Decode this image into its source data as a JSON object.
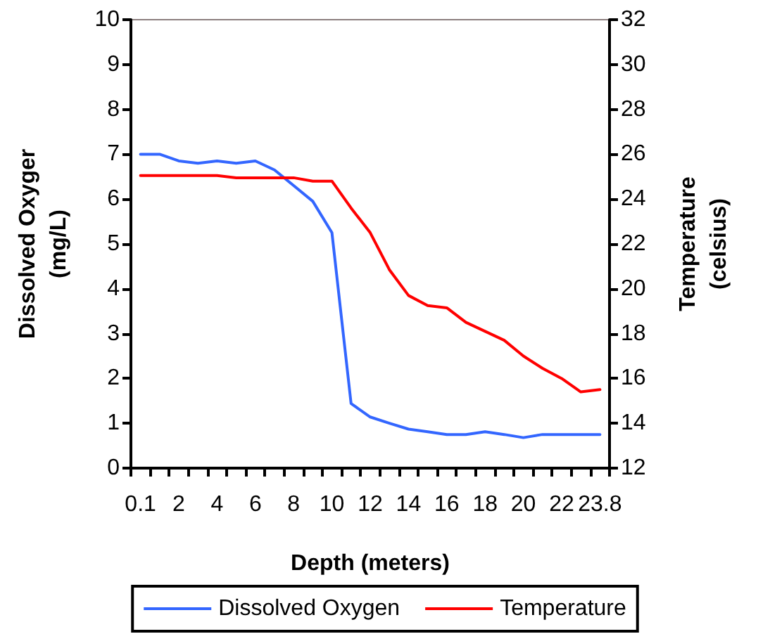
{
  "chart_data": {
    "type": "line",
    "categories": [
      "0.1",
      null,
      "2",
      null,
      "4",
      null,
      "6",
      null,
      "8",
      null,
      "10",
      null,
      "12",
      null,
      "14",
      null,
      "16",
      null,
      "18",
      null,
      "20",
      null,
      "22",
      null,
      "23.8"
    ],
    "xlabel": "Depth (meters)",
    "ylabel": "Dissolved Oxyger\n(mg/L)",
    "y2label": "Temperature\n(celsius)",
    "ylim": [
      0,
      10
    ],
    "yticks": [
      0,
      1,
      2,
      3,
      4,
      5,
      6,
      7,
      8,
      9,
      10
    ],
    "y2lim": [
      12,
      32
    ],
    "y2ticks": [
      12,
      14,
      16,
      18,
      20,
      22,
      24,
      26,
      28,
      30,
      32
    ],
    "series": [
      {
        "name": "Dissolved Oxygen",
        "color": "#3366ff",
        "values": [
          7.0,
          7.0,
          6.85,
          6.8,
          6.85,
          6.8,
          6.85,
          6.65,
          6.3,
          5.95,
          5.25,
          1.44,
          1.14,
          1.0,
          0.87,
          0.81,
          0.75,
          0.75,
          0.81,
          0.75,
          0.68,
          0.75,
          0.75,
          0.75,
          0.75
        ]
      },
      {
        "name": "Temperature",
        "color": "#ff0000",
        "axis": "y2",
        "values": [
          25.05,
          25.05,
          25.05,
          25.05,
          25.05,
          24.95,
          24.95,
          24.95,
          24.95,
          24.8,
          24.8,
          23.6,
          22.5,
          20.85,
          19.7,
          19.25,
          19.15,
          18.5,
          18.1,
          17.7,
          17.0,
          16.45,
          16.0,
          15.4,
          15.5
        ]
      }
    ],
    "legend": "bottom",
    "grid": false,
    "marker": "none",
    "line_style": "solid"
  }
}
